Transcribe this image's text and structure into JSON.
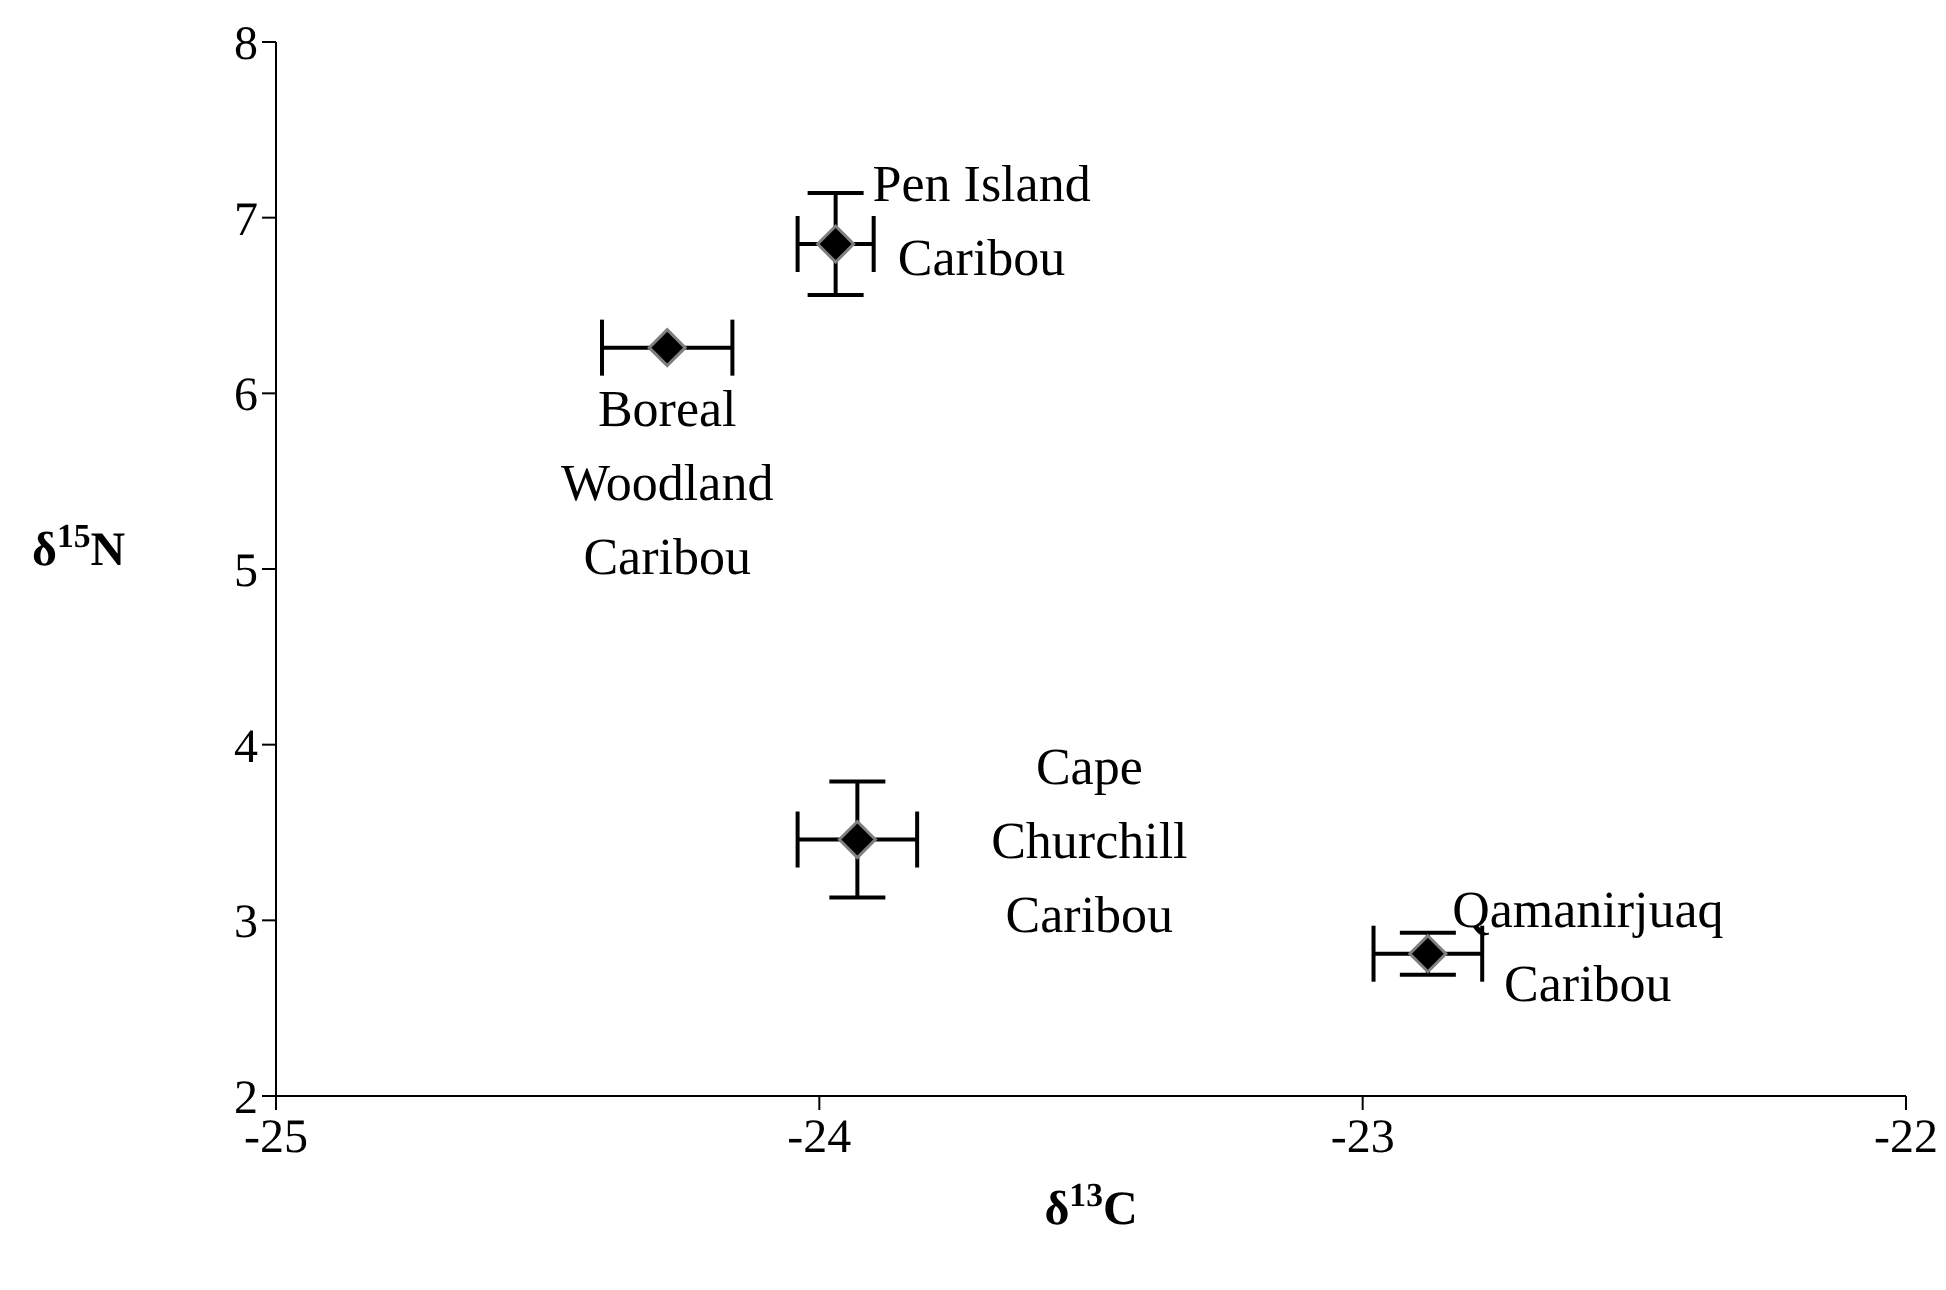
{
  "chart_data": {
    "type": "scatter",
    "xlabel": "δ$^{13}$C",
    "ylabel": "δ$^{15}$N",
    "x": [
      -23.97,
      -24.28,
      -23.93,
      -22.88
    ],
    "values": [
      6.85,
      6.26,
      3.46,
      2.81
    ],
    "errors": [
      0.29,
      null,
      0.33,
      0.12
    ],
    "xerrors": [
      0.07,
      0.12,
      0.11,
      0.1
    ],
    "color": "#000000",
    "marker": "diamond",
    "xlim": [
      -25,
      -22
    ],
    "xticks": [
      -25,
      -24,
      -23,
      -22
    ],
    "ylim": [
      2,
      8
    ],
    "yticks": [
      2,
      3,
      4,
      5,
      6,
      7,
      8
    ],
    "grid": false,
    "legend": false,
    "annotations": [
      {
        "text": "Pen Island\nCaribou",
        "x": -23.97,
        "y": 6.85
      },
      {
        "text": "Boreal\nWoodland\nCaribou",
        "x": -24.28,
        "y": 6.26
      },
      {
        "text": "Cape\nChurchill\nCaribou",
        "x": -23.93,
        "y": 3.46
      },
      {
        "text": "Qamanirjuaq\nCaribou",
        "x": -22.88,
        "y": 2.81
      }
    ]
  }
}
